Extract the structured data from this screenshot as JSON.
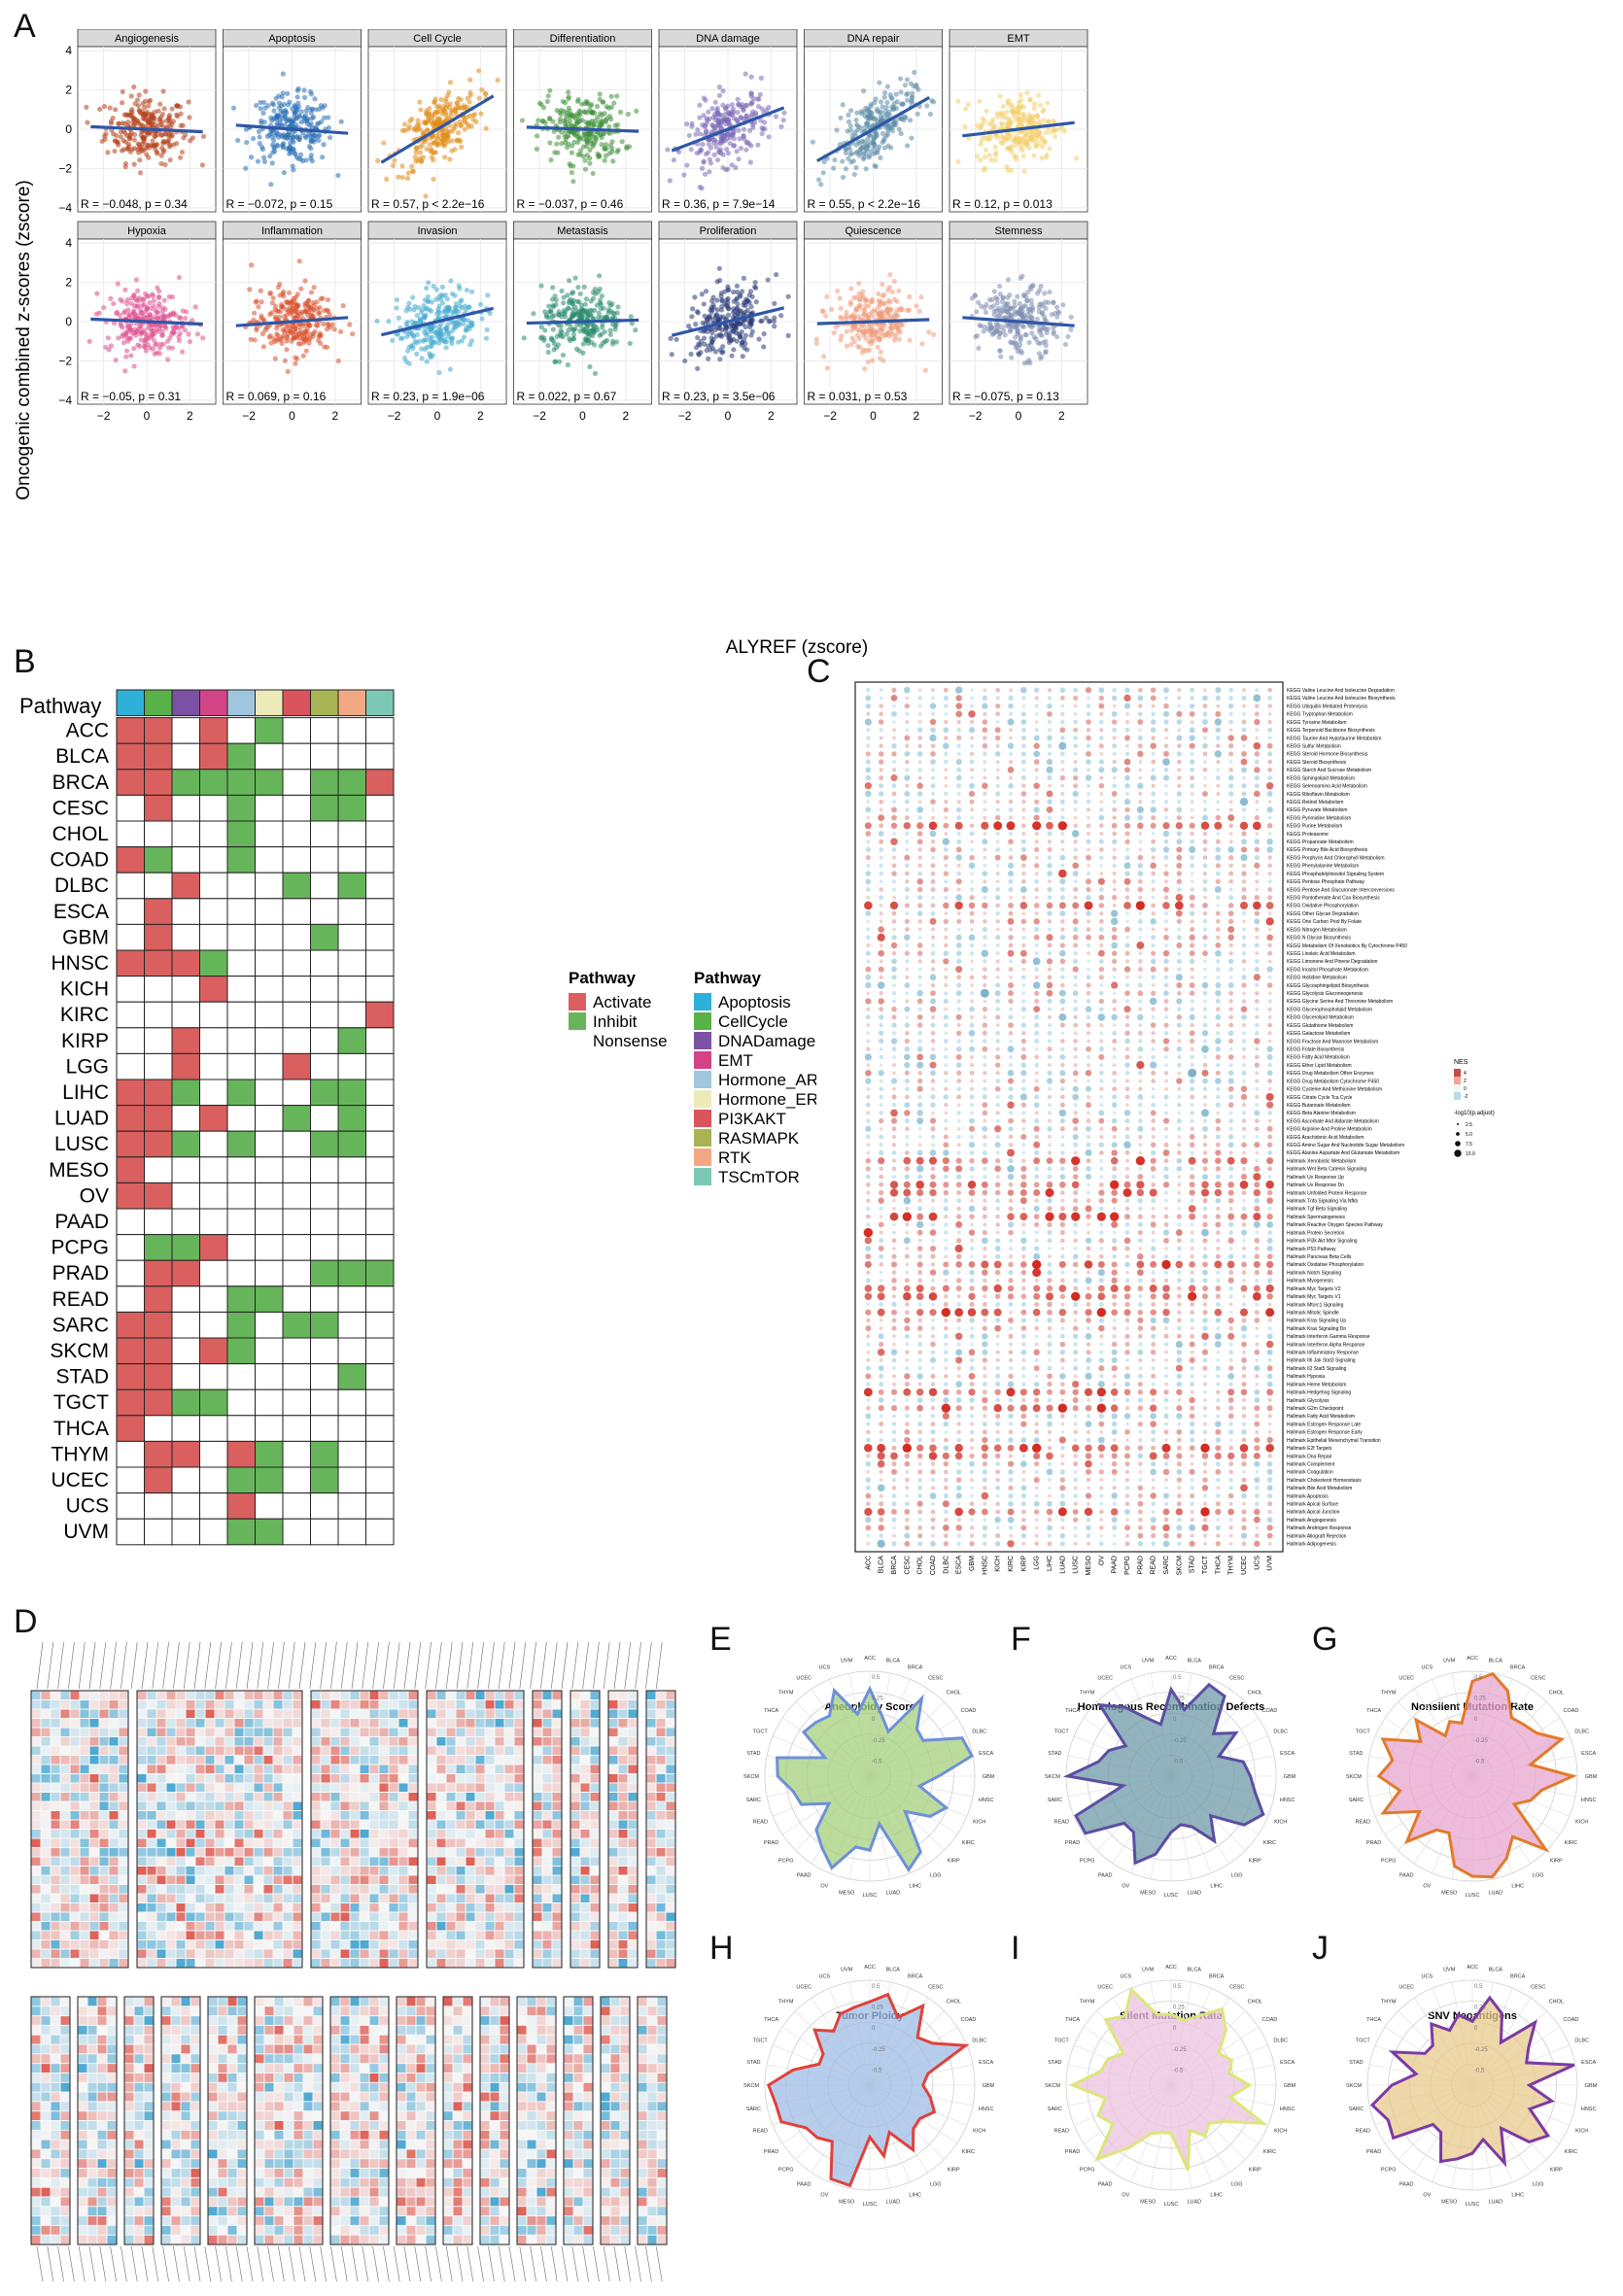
{
  "panel_letters": {
    "A": "A",
    "B": "B",
    "C": "C",
    "D": "D",
    "E": "E",
    "F": "F",
    "G": "G",
    "H": "H",
    "I": "I",
    "J": "J"
  },
  "panelA": {
    "ylabel": "Oncogenic combined z-scores (zscore)",
    "xlabel": "ALYREF (zscore)",
    "y_ticks": [
      "4",
      "2",
      "0",
      "−2",
      "−4"
    ],
    "x_ticks": [
      "−2",
      "0",
      "2"
    ],
    "facets": [
      {
        "name": "Angiogenesis",
        "color": "#b5421b",
        "slope": -0.05,
        "stat": "R = −0.048, p = 0.34"
      },
      {
        "name": "Apoptosis",
        "color": "#2a6fb5",
        "slope": -0.08,
        "stat": "R = −0.072, p = 0.15"
      },
      {
        "name": "Cell Cycle",
        "color": "#e08a16",
        "slope": 0.65,
        "stat": "R = 0.57, p < 2.2e−16"
      },
      {
        "name": "Differentiation",
        "color": "#3f8f3a",
        "slope": -0.04,
        "stat": "R = −0.037, p = 0.46"
      },
      {
        "name": "DNA damage",
        "color": "#7c6ab6",
        "slope": 0.42,
        "stat": "R = 0.36, p = 7.9e−14"
      },
      {
        "name": "DNA repair",
        "color": "#5b8aa6",
        "slope": 0.62,
        "stat": "R = 0.55, p < 2.2e−16"
      },
      {
        "name": "EMT",
        "color": "#f2cf6c",
        "slope": 0.13,
        "stat": "R = 0.12, p = 0.013"
      },
      {
        "name": "Hypoxia",
        "color": "#de4f8e",
        "slope": -0.05,
        "stat": "R = −0.05, p = 0.31"
      },
      {
        "name": "Inflammation",
        "color": "#d9502b",
        "slope": 0.08,
        "stat": "R = 0.069, p = 0.16"
      },
      {
        "name": "Invasion",
        "color": "#43a9cf",
        "slope": 0.26,
        "stat": "R = 0.23, p = 1.9e−06"
      },
      {
        "name": "Metastasis",
        "color": "#2a8a6e",
        "slope": 0.03,
        "stat": "R = 0.022, p = 0.67"
      },
      {
        "name": "Proliferation",
        "color": "#2b3a78",
        "slope": 0.27,
        "stat": "R = 0.23, p = 3.5e−06"
      },
      {
        "name": "Quiescence",
        "color": "#f09a7a",
        "slope": 0.04,
        "stat": "R = 0.031, p = 0.53"
      },
      {
        "name": "Stemness",
        "color": "#7f8eb0",
        "slope": -0.08,
        "stat": "R = −0.075, p = 0.13"
      }
    ]
  },
  "panelB": {
    "header": "Pathway",
    "columns": [
      "Apoptosis",
      "CellCycle",
      "DNADamage",
      "EMT",
      "Hormone_AR",
      "Hormone_ER",
      "PI3KAKT",
      "RASMAPK",
      "RTK",
      "TSCmTOR"
    ],
    "column_colors": [
      "#2fb0d8",
      "#59b248",
      "#7b52a3",
      "#d24486",
      "#9ec7de",
      "#eceab9",
      "#d9545c",
      "#a8b453",
      "#f2a983",
      "#7cc8b5"
    ],
    "status_colors": {
      "A": "#d9605f",
      "I": "#67b55a",
      "N": "#ffffff"
    },
    "rows": [
      {
        "cancer": "ACC",
        "cells": "AA-A-I----"
      },
      {
        "cancer": "BLCA",
        "cells": "AA-AI-----"
      },
      {
        "cancer": "BRCA",
        "cells": "AAIIII-IIA"
      },
      {
        "cancer": "CESC",
        "cells": "-A--I--II-"
      },
      {
        "cancer": "CHOL",
        "cells": "----I-----"
      },
      {
        "cancer": "COAD",
        "cells": "AI--I-----"
      },
      {
        "cancer": "DLBC",
        "cells": "--A---I-I-"
      },
      {
        "cancer": "ESCA",
        "cells": "-A--------"
      },
      {
        "cancer": "GBM",
        "cells": "-A-----I--"
      },
      {
        "cancer": "HNSC",
        "cells": "AAAI------"
      },
      {
        "cancer": "KICH",
        "cells": "---A------"
      },
      {
        "cancer": "KIRC",
        "cells": "---------A"
      },
      {
        "cancer": "KIRP",
        "cells": "--A-----I-"
      },
      {
        "cancer": "LGG",
        "cells": "--A---A---"
      },
      {
        "cancer": "LIHC",
        "cells": "AAI-I--II-"
      },
      {
        "cancer": "LUAD",
        "cells": "AA-A--I-I-"
      },
      {
        "cancer": "LUSC",
        "cells": "AAI-I--II-"
      },
      {
        "cancer": "MESO",
        "cells": "A---------"
      },
      {
        "cancer": "OV",
        "cells": "AA--------"
      },
      {
        "cancer": "PAAD",
        "cells": "----------"
      },
      {
        "cancer": "PCPG",
        "cells": "-IIA------"
      },
      {
        "cancer": "PRAD",
        "cells": "-AA----III"
      },
      {
        "cancer": "READ",
        "cells": "-A--II----"
      },
      {
        "cancer": "SARC",
        "cells": "AA--I-II--"
      },
      {
        "cancer": "SKCM",
        "cells": "AA-AI-----"
      },
      {
        "cancer": "STAD",
        "cells": "AA------I-"
      },
      {
        "cancer": "TGCT",
        "cells": "AAII------"
      },
      {
        "cancer": "THCA",
        "cells": "A---------"
      },
      {
        "cancer": "THYM",
        "cells": "-AA-AI-I--"
      },
      {
        "cancer": "UCEC",
        "cells": "-A--II-I--"
      },
      {
        "cancer": "UCS",
        "cells": "----A-----"
      },
      {
        "cancer": "UVM",
        "cells": "----II----"
      }
    ],
    "legend1_title": "Pathway",
    "legend1": [
      {
        "label": "Activate",
        "color": "#d9605f"
      },
      {
        "label": "Inhibit",
        "color": "#67b55a"
      },
      {
        "label": "Nonsense",
        "color": "#ffffff"
      }
    ],
    "legend2_title": "Pathway",
    "legend2": [
      {
        "label": "Apoptosis",
        "color": "#2fb0d8"
      },
      {
        "label": "CellCycle",
        "color": "#59b248"
      },
      {
        "label": "DNADamage",
        "color": "#7b52a3"
      },
      {
        "label": "EMT",
        "color": "#d24486"
      },
      {
        "label": "Hormone_AR",
        "color": "#9ec7de"
      },
      {
        "label": "Hormone_ER",
        "color": "#eceab9"
      },
      {
        "label": "PI3KAKT",
        "color": "#d9545c"
      },
      {
        "label": "RASMAPK",
        "color": "#a8b453"
      },
      {
        "label": "RTK",
        "color": "#f2a983"
      },
      {
        "label": "TSCmTOR",
        "color": "#7cc8b5"
      }
    ]
  },
  "panelC": {
    "cancers": [
      "ACC",
      "BLCA",
      "BRCA",
      "CESC",
      "CHOL",
      "COAD",
      "DLBC",
      "ESCA",
      "GBM",
      "HNSC",
      "KICH",
      "KIRC",
      "KIRP",
      "LGG",
      "LIHC",
      "LUAD",
      "LUSC",
      "MESO",
      "OV",
      "PAAD",
      "PCPG",
      "PRAD",
      "READ",
      "SARC",
      "SKCM",
      "STAD",
      "TGCT",
      "THCA",
      "THYM",
      "UCEC",
      "UCS",
      "UVM"
    ],
    "pathways": [
      "KEGG Valine Leucine And Isoleucine Degradation",
      "KEGG Valine Leucine And Isoleucine Biosynthesis",
      "KEGG Ubiquitin Mediated Proteolysis",
      "KEGG Tryptophan Metabolism",
      "KEGG Tyrosine Metabolism",
      "KEGG Terpenoid Backbone Biosynthesis",
      "KEGG Taurine And Hypotaurine Metabolism",
      "KEGG Sulfur Metabolism",
      "KEGG Steroid Hormone Biosynthesis",
      "KEGG Steroid Biosynthesis",
      "KEGG Starch And Sucrose Metabolism",
      "KEGG Sphingolipid Metabolism",
      "KEGG Selenoamino Acid Metabolism",
      "KEGG Riboflavin Metabolism",
      "KEGG Retinol Metabolism",
      "KEGG Pyruvate Metabolism",
      "KEGG Pyrimidine Metabolism",
      "KEGG Purine Metabolism",
      "KEGG Proteasome",
      "KEGG Propanoate Metabolism",
      "KEGG Primary Bile Acid Biosynthesis",
      "KEGG Porphyrin And Chlorophyll Metabolism",
      "KEGG Phenylalanine Metabolism",
      "KEGG Phosphatidylinositol Signaling System",
      "KEGG Pentose Phosphate Pathway",
      "KEGG Pentose And Glucuronate Interconversions",
      "KEGG Pantothenate And Coa Biosynthesis",
      "KEGG Oxidative Phosphorylation",
      "KEGG Other Glycan Degradation",
      "KEGG One Carbon Pool By Folate",
      "KEGG Nitrogen Metabolism",
      "KEGG N Glycan Biosynthesis",
      "KEGG Metabolism Of Xenobiotics By Cytochrome P450",
      "KEGG Linoleic Acid Metabolism",
      "KEGG Limonene And Pinene Degradation",
      "KEGG Inositol Phosphate Metabolism",
      "KEGG Histidine Metabolism",
      "KEGG Glycosphingolipid Biosynthesis",
      "KEGG Glycolysis Gluconeogenesis",
      "KEGG Glycine Serine And Threonine Metabolism",
      "KEGG Glycerophospholipid Metabolism",
      "KEGG Glycerolipid Metabolism",
      "KEGG Glutathione Metabolism",
      "KEGG Galactose Metabolism",
      "KEGG Fructose And Mannose Metabolism",
      "KEGG Folate Biosynthesis",
      "KEGG Fatty Acid Metabolism",
      "KEGG Ether Lipid Metabolism",
      "KEGG Drug Metabolism Other Enzymes",
      "KEGG Drug Metabolism Cytochrome P450",
      "KEGG Cysteine And Methionine Metabolism",
      "KEGG Citrate Cycle Tca Cycle",
      "KEGG Butanoate Metabolism",
      "KEGG Beta Alanine Metabolism",
      "KEGG Ascorbate And Aldarate Metabolism",
      "KEGG Arginine And Proline Metabolism",
      "KEGG Arachidonic Acid Metabolism",
      "KEGG Amino Sugar And Nucleotide Sugar Metabolism",
      "KEGG Alanine Aspartate And Glutamate Metabolism",
      "Hallmark Xenobiotic Metabolism",
      "Hallmark Wnt Beta Catenin Signaling",
      "Hallmark Uv Response Up",
      "Hallmark Uv Response Dn",
      "Hallmark Unfolded Protein Response",
      "Hallmark Tnfa Signaling Via Nfkb",
      "Hallmark Tgf Beta Signaling",
      "Hallmark Spermatogenesis",
      "Hallmark Reactive Oxygen Species Pathway",
      "Hallmark Protein Secretion",
      "Hallmark Pi3k Akt Mtor Signaling",
      "Hallmark P53 Pathway",
      "Hallmark Pancreas Beta Cells",
      "Hallmark Oxidative Phosphorylation",
      "Hallmark Notch Signaling",
      "Hallmark Myogenesis",
      "Hallmark Myc Targets V2",
      "Hallmark Myc Targets V1",
      "Hallmark Mtorc1 Signaling",
      "Hallmark Mitotic Spindle",
      "Hallmark Kras Signaling Up",
      "Hallmark Kras Signaling Dn",
      "Hallmark Interferon Gamma Response",
      "Hallmark Interferon Alpha Response",
      "Hallmark Inflammatory Response",
      "Hallmark Il6 Jak Stat3 Signaling",
      "Hallmark Il2 Stat5 Signaling",
      "Hallmark Hypoxia",
      "Hallmark Heme Metabolism",
      "Hallmark Hedgehog Signaling",
      "Hallmark Glycolysis",
      "Hallmark G2m Checkpoint",
      "Hallmark Fatty Acid Metabolism",
      "Hallmark Estrogen Response Late",
      "Hallmark Estrogen Response Early",
      "Hallmark Epithelial Mesenchymal Transition",
      "Hallmark E2f Targets",
      "Hallmark Dna Repair",
      "Hallmark Complement",
      "Hallmark Coagulation",
      "Hallmark Cholesterol Homeostasis",
      "Hallmark Bile Acid Metabolism",
      "Hallmark Apoptosis",
      "Hallmark Apical Surface",
      "Hallmark Apical Junction",
      "Hallmark Angiogenesis",
      "Hallmark Androgen Response",
      "Hallmark Allograft Rejection",
      "Hallmark Adipogenesis"
    ],
    "legend_nes_title": "NES",
    "legend_nes_ticks": [
      "4",
      "2",
      "0",
      "-2"
    ],
    "legend_size_title": "-log10(p.adjust)",
    "legend_size_ticks": [
      "2.5",
      "5.0",
      "7.5",
      "10.0"
    ]
  },
  "panelD": {
    "top_blocks": 8,
    "bottom_blocks": 14
  },
  "radars": [
    {
      "key": "E",
      "title": "Aneuploidy Score",
      "fill": "#a5d07e",
      "stroke": "#6f8fd8"
    },
    {
      "key": "F",
      "title": "Homologous Recombination Defects",
      "fill": "#6f9aa8",
      "stroke": "#5b4ea3"
    },
    {
      "key": "G",
      "title": "Nonsilent Mutation Rate",
      "fill": "#e8a6cf",
      "stroke": "#e27a2a"
    },
    {
      "key": "H",
      "title": "Tumor Ploidy",
      "fill": "#9dbde6",
      "stroke": "#e0413b"
    },
    {
      "key": "I",
      "title": "Silent Mutation Rate",
      "fill": "#ecc1df",
      "stroke": "#dbe77a"
    },
    {
      "key": "J",
      "title": "SNV Neoantigens",
      "fill": "#e8c98c",
      "stroke": "#7c3aa5"
    }
  ],
  "radar_rings": [
    "0.5",
    "0.25",
    "0",
    "-0.25",
    "-0.5"
  ]
}
